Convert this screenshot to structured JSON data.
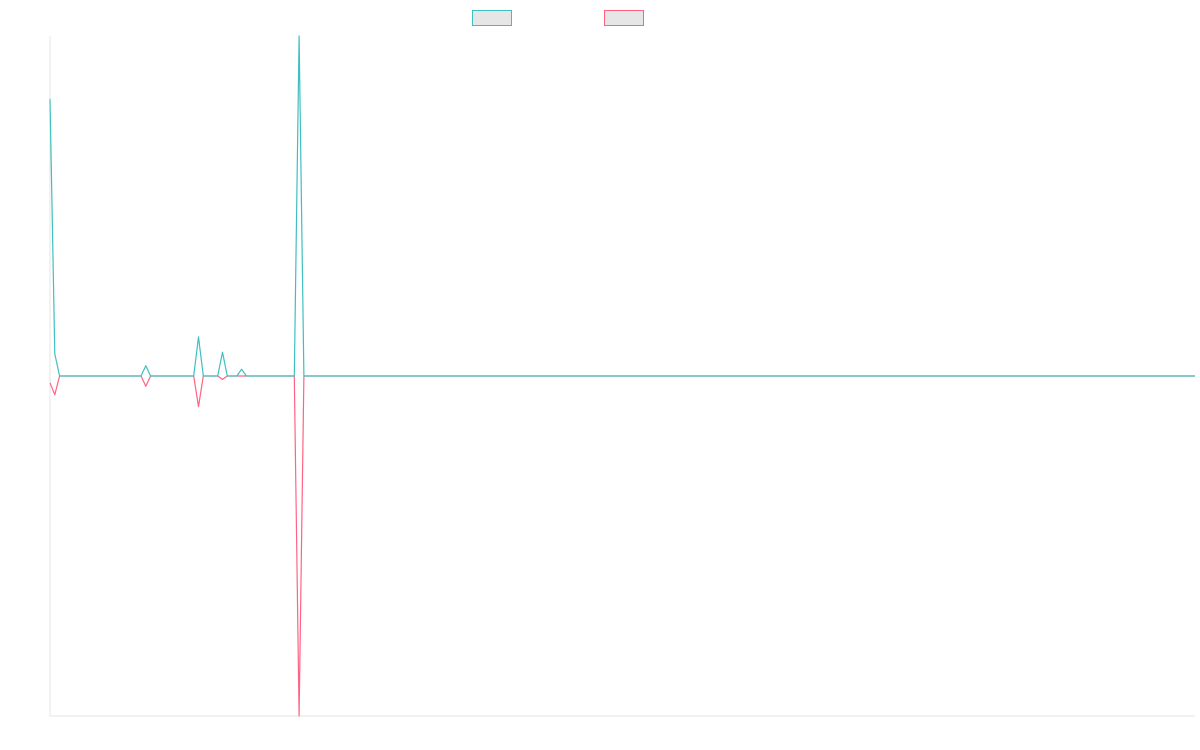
{
  "colors": {
    "series_a": "#3fbfbf",
    "series_b": "#ff6384",
    "legend_fill": "#e6e6e6",
    "axis": "#e5e5e5"
  },
  "chart_data": {
    "type": "line",
    "grid": false,
    "legend_position": "top-center",
    "y_range": [
      -200,
      200
    ],
    "x_range": [
      0,
      239
    ],
    "series": [
      {
        "color": "#3fbfbf",
        "points": [
          [
            0,
            163
          ],
          [
            1,
            13
          ],
          [
            2,
            0
          ],
          [
            19,
            0
          ],
          [
            20,
            6
          ],
          [
            21,
            0
          ],
          [
            30,
            0
          ],
          [
            31,
            23
          ],
          [
            32,
            0
          ],
          [
            35,
            0
          ],
          [
            36,
            14
          ],
          [
            37,
            0
          ],
          [
            39,
            0
          ],
          [
            40,
            4
          ],
          [
            41,
            0
          ],
          [
            51,
            0
          ],
          [
            52,
            200
          ],
          [
            53,
            0
          ],
          [
            239,
            0
          ]
        ]
      },
      {
        "color": "#ff6384",
        "points": [
          [
            0,
            -4
          ],
          [
            1,
            -11
          ],
          [
            2,
            0
          ],
          [
            19,
            0
          ],
          [
            20,
            -6
          ],
          [
            21,
            0
          ],
          [
            30,
            0
          ],
          [
            31,
            -18
          ],
          [
            32,
            0
          ],
          [
            35,
            0
          ],
          [
            36,
            -2
          ],
          [
            37,
            0
          ],
          [
            51,
            0
          ],
          [
            52,
            -200
          ],
          [
            53,
            0
          ],
          [
            239,
            0
          ]
        ]
      }
    ]
  }
}
